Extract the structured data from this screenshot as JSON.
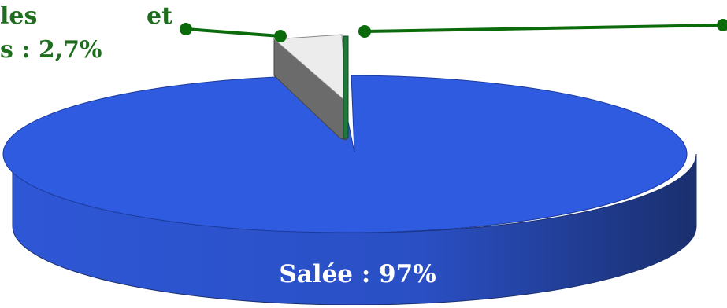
{
  "chart_data": {
    "type": "pie",
    "slices": [
      {
        "label": "Salée",
        "value": 97,
        "color": "#2f5be0"
      },
      {
        "label": "",
        "value": 2.7,
        "color": "#e8e8e8"
      },
      {
        "label": "",
        "value": 0.3,
        "color": "#1f7a3a"
      }
    ],
    "annotations": {
      "salee": "Salée : 97%",
      "partial_label_top": "les",
      "partial_label_value": "s : 2,7%",
      "partial_label_et": "et"
    },
    "colors": {
      "blue": "#2f5be0",
      "blue_dark": "#1e3a8a",
      "label_green": "#1f6e1f",
      "leader_green": "#0b6b0b",
      "grey_light": "#ececec",
      "grey_dark": "#6b6b6b"
    }
  }
}
